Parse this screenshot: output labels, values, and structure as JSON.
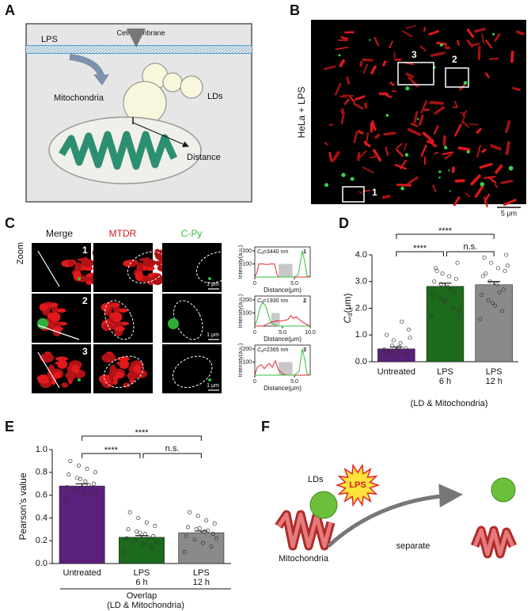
{
  "panel_labels": [
    "A",
    "B",
    "C",
    "D",
    "E",
    "F"
  ],
  "panel_a": {
    "lps": "LPS",
    "membrane": "Cell membrane",
    "mitochondria": "Mitochondria",
    "lds": "LDs",
    "distance": "Distance"
  },
  "panel_b": {
    "sample": "HeLa + LPS",
    "regions": [
      "1",
      "2",
      "3"
    ],
    "scale_bar": "5 μm"
  },
  "panel_c": {
    "columns": [
      "Merge",
      "MTDR",
      "C-Py"
    ],
    "row_label": "Zoom",
    "rows": [
      "1",
      "2",
      "3"
    ],
    "scale_bars": [
      "1 μm",
      "1 μm",
      "1 μm"
    ]
  },
  "panel_f": {
    "lds": "LDs",
    "lps": "LPS",
    "mitochondria": "Mitochondria",
    "action": "separate"
  },
  "chart_data": [
    {
      "type": "line",
      "number": "1",
      "annotation_symbol": [
        "C",
        "d"
      ],
      "annotation": "=3440 nm",
      "xlabel": "Distance(μm)",
      "ylabel": "Intensity(a.u.)",
      "x": [
        0,
        0.3,
        0.5,
        1,
        1.5,
        2,
        2.5,
        2.8,
        3,
        4,
        5,
        5.5,
        6,
        6.3,
        6.6,
        7
      ],
      "series": [
        {
          "color": "#e0262b",
          "values": [
            0,
            40,
            100,
            100,
            95,
            100,
            100,
            20,
            0,
            0,
            0,
            0,
            0,
            0,
            0,
            0
          ]
        },
        {
          "color": "#2fbf3a",
          "values": [
            0,
            0,
            0,
            0,
            0,
            0,
            0,
            0,
            0,
            0,
            0,
            20,
            200,
            120,
            10,
            0
          ]
        }
      ],
      "xlim": [
        0,
        7
      ],
      "xticks": [
        0,
        {
          "value": 5,
          "label": "5.0"
        }
      ],
      "ylim": [
        0,
        230
      ],
      "yticks": [
        100,
        200
      ]
    },
    {
      "type": "line",
      "number": "2",
      "annotation_symbol": [
        "C",
        "d"
      ],
      "annotation": "=1930 nm",
      "xlabel": "Distance(μm)",
      "ylabel": "Intensity(a.u.)",
      "x": [
        0,
        0.5,
        1,
        1.5,
        2,
        2.5,
        3,
        4,
        5,
        6,
        6.5,
        7,
        7.5,
        8,
        9,
        10
      ],
      "series": [
        {
          "color": "#e0262b",
          "values": [
            0,
            0,
            0,
            0,
            10,
            20,
            30,
            40,
            40,
            50,
            80,
            60,
            70,
            50,
            20,
            0
          ]
        },
        {
          "color": "#2fbf3a",
          "values": [
            0,
            60,
            150,
            180,
            150,
            80,
            20,
            0,
            0,
            0,
            0,
            0,
            0,
            0,
            0,
            0
          ]
        }
      ],
      "xlim": [
        0,
        10
      ],
      "xticks": [
        0,
        {
          "value": 5,
          "label": "5.0"
        },
        {
          "value": 10,
          "label": "10.0"
        }
      ],
      "ylim": [
        0,
        230
      ],
      "yticks": [
        100,
        200
      ]
    },
    {
      "type": "line",
      "number": "3",
      "annotation_symbol": [
        "C",
        "d"
      ],
      "annotation": "=2365 nm",
      "xlabel": "Distance(μm)",
      "ylabel": "Intensity(a.u.)",
      "x": [
        0,
        0.3,
        0.8,
        1.2,
        1.8,
        2.2,
        2.6,
        3,
        3.5,
        4,
        5,
        5.6,
        6,
        6.3,
        6.6,
        7
      ],
      "series": [
        {
          "color": "#e0262b",
          "values": [
            0,
            60,
            80,
            50,
            90,
            60,
            110,
            40,
            10,
            0,
            0,
            0,
            0,
            0,
            0,
            0
          ]
        },
        {
          "color": "#2fbf3a",
          "values": [
            0,
            0,
            0,
            0,
            0,
            0,
            0,
            0,
            0,
            0,
            0,
            30,
            200,
            120,
            10,
            0
          ]
        }
      ],
      "xlim": [
        0,
        7
      ],
      "xticks": [
        0,
        {
          "value": 5,
          "label": "5.0"
        }
      ],
      "ylim": [
        0,
        230
      ],
      "yticks": [
        100,
        200
      ]
    },
    {
      "type": "bar",
      "ylabel_parts": [
        "C",
        "d",
        "(μm)"
      ],
      "categories": [
        [
          "Untreated"
        ],
        [
          "LPS",
          "6 h"
        ],
        [
          "LPS",
          "12 h"
        ]
      ],
      "values": [
        0.48,
        2.82,
        2.88
      ],
      "errors": [
        0.07,
        0.12,
        0.12
      ],
      "colors": [
        "#5b1f7c",
        "#1c6a1c",
        "#8a8a8a"
      ],
      "points": [
        [
          0.2,
          0.3,
          0.35,
          0.4,
          0.45,
          0.5,
          0.55,
          0.6,
          0.3,
          0.25,
          0.7,
          0.8,
          1.0,
          1.2,
          1.5,
          0.15,
          0.4,
          0.9
        ],
        [
          1.7,
          2.0,
          2.2,
          2.4,
          2.5,
          2.6,
          2.8,
          2.9,
          3.0,
          3.1,
          3.2,
          3.3,
          3.5,
          3.7,
          2.7,
          2.3,
          3.4,
          1.9
        ],
        [
          1.6,
          1.9,
          2.1,
          2.3,
          2.5,
          2.7,
          2.9,
          3.0,
          3.2,
          3.4,
          3.5,
          3.7,
          3.9,
          4.0,
          2.6,
          2.2,
          3.3,
          3.6
        ]
      ],
      "significance": [
        "****",
        "****",
        "n.s."
      ],
      "footnote": "(LD & Mitochondria)",
      "ylim": [
        0,
        4
      ],
      "yticks": [
        {
          "value": 0,
          "label": "0.0"
        },
        {
          "value": 1,
          "label": "1.0"
        },
        {
          "value": 2,
          "label": "2.0"
        },
        {
          "value": 3,
          "label": "3.0"
        },
        {
          "value": 4,
          "label": "4.0"
        }
      ]
    },
    {
      "type": "bar",
      "ylabel": "Pearson's value",
      "categories": [
        [
          "Untreated"
        ],
        [
          "LPS",
          "6 h"
        ],
        [
          "LPS",
          "12 h"
        ]
      ],
      "values": [
        0.68,
        0.23,
        0.27
      ],
      "errors": [
        0.02,
        0.015,
        0.015
      ],
      "colors": [
        "#5b1f7c",
        "#1c6a1c",
        "#8a8a8a"
      ],
      "points": [
        [
          0.56,
          0.6,
          0.62,
          0.65,
          0.67,
          0.7,
          0.72,
          0.75,
          0.78,
          0.8,
          0.83,
          0.86,
          0.9,
          0.64,
          0.69,
          0.74
        ],
        [
          0.1,
          0.14,
          0.17,
          0.2,
          0.22,
          0.24,
          0.26,
          0.28,
          0.3,
          0.33,
          0.36,
          0.4,
          0.45,
          0.19,
          0.23,
          0.27
        ],
        [
          0.1,
          0.15,
          0.18,
          0.21,
          0.24,
          0.26,
          0.28,
          0.3,
          0.32,
          0.35,
          0.38,
          0.42,
          0.45,
          0.22,
          0.29,
          0.31
        ]
      ],
      "significance": [
        "****",
        "****",
        "n.s."
      ],
      "group_label": "Overlap",
      "footnote": "(LD & Mitochondria)",
      "ylim": [
        0,
        1
      ],
      "yticks": [
        {
          "value": 0,
          "label": "0.0"
        },
        {
          "value": 0.2,
          "label": "0.2"
        },
        {
          "value": 0.4,
          "label": "0.4"
        },
        {
          "value": 0.6,
          "label": "0.6"
        },
        {
          "value": 0.8,
          "label": "0.8"
        },
        {
          "value": 1,
          "label": "1.0"
        }
      ]
    }
  ]
}
